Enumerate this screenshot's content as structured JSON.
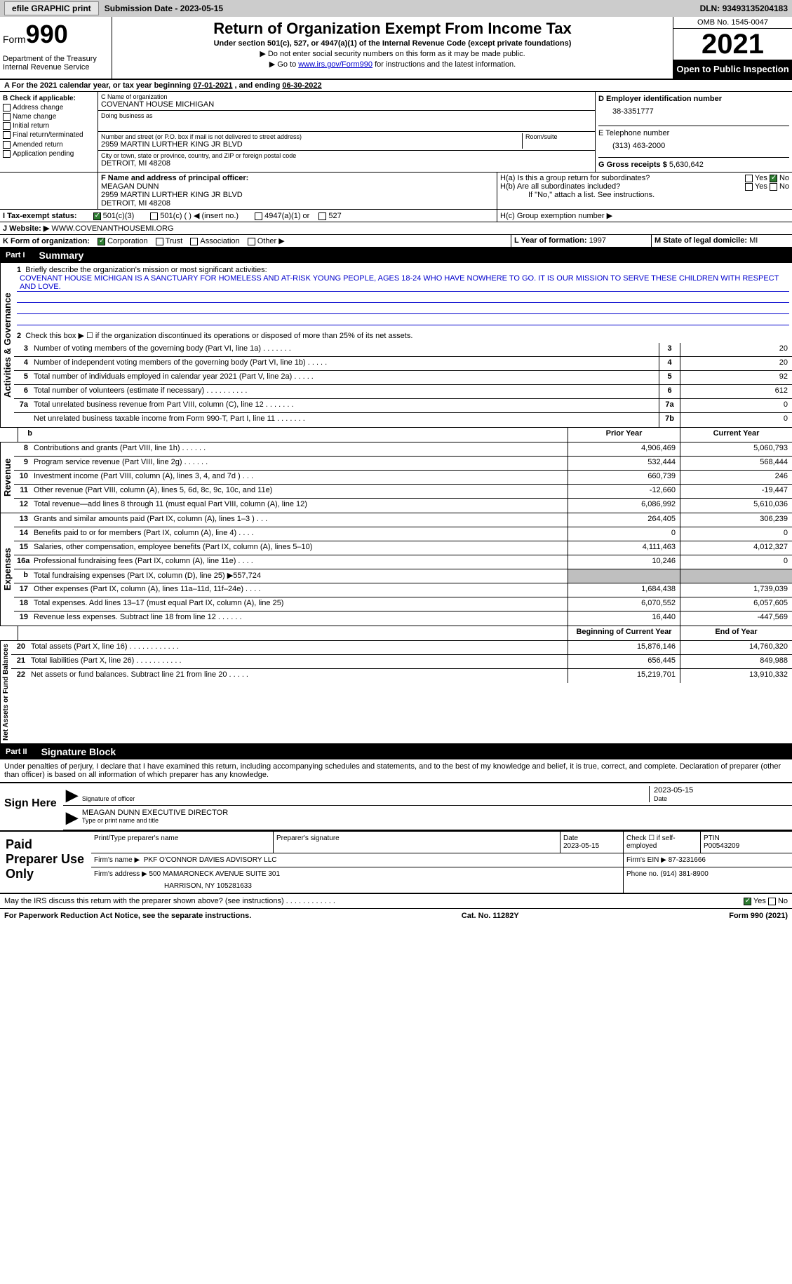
{
  "topbar": {
    "efile": "efile GRAPHIC print",
    "subdate_label": "Submission Date - ",
    "subdate": "2023-05-15",
    "dln_label": "DLN: ",
    "dln": "93493135204183"
  },
  "header": {
    "form_prefix": "Form",
    "form_num": "990",
    "dept": "Department of the Treasury\nInternal Revenue Service",
    "title": "Return of Organization Exempt From Income Tax",
    "sub": "Under section 501(c), 527, or 4947(a)(1) of the Internal Revenue Code (except private foundations)",
    "note1": "▶ Do not enter social security numbers on this form as it may be made public.",
    "note2_pre": "▶ Go to ",
    "note2_link": "www.irs.gov/Form990",
    "note2_post": " for instructions and the latest information.",
    "omb": "OMB No. 1545-0047",
    "year": "2021",
    "inspect": "Open to Public Inspection"
  },
  "sectionA": {
    "text": "A For the 2021 calendar year, or tax year beginning ",
    "begin": "07-01-2021",
    "mid": "   , and ending ",
    "end": "06-30-2022"
  },
  "blockB": {
    "label": "B Check if applicable:",
    "items": [
      "Address change",
      "Name change",
      "Initial return",
      "Final return/terminated",
      "Amended return",
      "Application pending"
    ]
  },
  "blockC": {
    "name_label": "C Name of organization",
    "name": "COVENANT HOUSE MICHIGAN",
    "dba_label": "Doing business as",
    "addr_label": "Number and street (or P.O. box if mail is not delivered to street address)",
    "room_label": "Room/suite",
    "addr": "2959 MARTIN LURTHER KING JR BLVD",
    "city_label": "City or town, state or province, country, and ZIP or foreign postal code",
    "city": "DETROIT, MI  48208"
  },
  "blockD": {
    "label": "D Employer identification number",
    "ein": "38-3351777",
    "tel_label": "E Telephone number",
    "tel": "(313) 463-2000",
    "gross_label": "G Gross receipts $ ",
    "gross": "5,630,642"
  },
  "blockF": {
    "label": "F Name and address of principal officer:",
    "name": "MEAGAN DUNN",
    "addr": "2959 MARTIN LURTHER KING JR BLVD",
    "city": "DETROIT, MI  48208"
  },
  "blockH": {
    "ha": "H(a)  Is this a group return for subordinates?",
    "hb": "H(b)  Are all subordinates included?",
    "hb_note": "If \"No,\" attach a list. See instructions.",
    "hc": "H(c)  Group exemption number ▶"
  },
  "blockI": {
    "label": "I    Tax-exempt status:",
    "opts": [
      "501(c)(3)",
      "501(c) (  ) ◀ (insert no.)",
      "4947(a)(1) or",
      "527"
    ]
  },
  "blockJ": {
    "label": "J    Website: ▶  ",
    "value": "WWW.COVENANTHOUSEMI.ORG"
  },
  "blockK": {
    "label": "K Form of organization:",
    "opts": [
      "Corporation",
      "Trust",
      "Association",
      "Other ▶"
    ]
  },
  "blockL": {
    "label": "L Year of formation: ",
    "value": "1997"
  },
  "blockM": {
    "label": "M State of legal domicile: ",
    "value": "MI"
  },
  "part1": {
    "num": "Part I",
    "title": "Summary"
  },
  "activities": {
    "label": "Activities & Governance",
    "l1_label": "Briefly describe the organization's mission or most significant activities:",
    "l1_text": "COVENANT HOUSE MICHIGAN IS A SANCTUARY FOR HOMELESS AND AT-RISK YOUNG PEOPLE, AGES 18-24 WHO HAVE NOWHERE TO GO. IT IS OUR MISSION TO SERVE THESE CHILDREN WITH RESPECT AND LOVE.",
    "l2": "Check this box ▶ ☐  if the organization discontinued its operations or disposed of more than 25% of its net assets.",
    "lines": [
      {
        "n": "3",
        "d": "Number of voting members of the governing body (Part VI, line 1a)   .    .    .    .    .    .    .",
        "b": "3",
        "v": "20"
      },
      {
        "n": "4",
        "d": "Number of independent voting members of the governing body (Part VI, line 1b)   .    .    .    .    .",
        "b": "4",
        "v": "20"
      },
      {
        "n": "5",
        "d": "Total number of individuals employed in calendar year 2021 (Part V, line 2a)   .    .    .    .    .",
        "b": "5",
        "v": "92"
      },
      {
        "n": "6",
        "d": "Total number of volunteers (estimate if necessary)    .    .    .    .    .    .    .    .    .    .",
        "b": "6",
        "v": "612"
      },
      {
        "n": "7a",
        "d": "Total unrelated business revenue from Part VIII, column (C), line 12   .    .    .    .    .    .    .",
        "b": "7a",
        "v": "0"
      },
      {
        "n": "",
        "d": "Net unrelated business taxable income from Form 990-T, Part I, line 11  .    .    .    .    .    .    .",
        "b": "7b",
        "v": "0"
      }
    ]
  },
  "colheads": {
    "prior": "Prior Year",
    "current": "Current Year",
    "begin": "Beginning of Current Year",
    "end": "End of Year"
  },
  "revenue": {
    "label": "Revenue",
    "lines": [
      {
        "n": "8",
        "d": "Contributions and grants (Part VIII, line 1h)   .    .    .    .    .    .",
        "p": "4,906,469",
        "c": "5,060,793"
      },
      {
        "n": "9",
        "d": "Program service revenue (Part VIII, line 2g)   .    .    .    .    .    .",
        "p": "532,444",
        "c": "568,444"
      },
      {
        "n": "10",
        "d": "Investment income (Part VIII, column (A), lines 3, 4, and 7d )    .    .    .",
        "p": "660,739",
        "c": "246"
      },
      {
        "n": "11",
        "d": "Other revenue (Part VIII, column (A), lines 5, 6d, 8c, 9c, 10c, and 11e)",
        "p": "-12,660",
        "c": "-19,447"
      },
      {
        "n": "12",
        "d": "Total revenue—add lines 8 through 11 (must equal Part VIII, column (A), line 12)",
        "p": "6,086,992",
        "c": "5,610,036"
      }
    ]
  },
  "expenses": {
    "label": "Expenses",
    "lines": [
      {
        "n": "13",
        "d": "Grants and similar amounts paid (Part IX, column (A), lines 1–3 )   .    .    .",
        "p": "264,405",
        "c": "306,239"
      },
      {
        "n": "14",
        "d": "Benefits paid to or for members (Part IX, column (A), line 4)   .    .    .    .",
        "p": "0",
        "c": "0"
      },
      {
        "n": "15",
        "d": "Salaries, other compensation, employee benefits (Part IX, column (A), lines 5–10)",
        "p": "4,111,463",
        "c": "4,012,327"
      },
      {
        "n": "16a",
        "d": "Professional fundraising fees (Part IX, column (A), line 11e)   .    .    .    .",
        "p": "10,246",
        "c": "0"
      },
      {
        "n": "b",
        "d": "Total fundraising expenses (Part IX, column (D), line 25) ▶557,724",
        "p": "shade",
        "c": "shade"
      },
      {
        "n": "17",
        "d": "Other expenses (Part IX, column (A), lines 11a–11d, 11f–24e)   .    .    .    .",
        "p": "1,684,438",
        "c": "1,739,039"
      },
      {
        "n": "18",
        "d": "Total expenses. Add lines 13–17 (must equal Part IX, column (A), line 25)",
        "p": "6,070,552",
        "c": "6,057,605"
      },
      {
        "n": "19",
        "d": "Revenue less expenses. Subtract line 18 from line 12  .    .    .    .    .    .",
        "p": "16,440",
        "c": "-447,569"
      }
    ]
  },
  "netassets": {
    "label": "Net Assets or Fund Balances",
    "lines": [
      {
        "n": "20",
        "d": "Total assets (Part X, line 16)  .    .    .    .    .    .    .    .    .    .    .    .",
        "p": "15,876,146",
        "c": "14,760,320"
      },
      {
        "n": "21",
        "d": "Total liabilities (Part X, line 26)  .    .    .    .    .    .    .    .    .    .    .",
        "p": "656,445",
        "c": "849,988"
      },
      {
        "n": "22",
        "d": "Net assets or fund balances. Subtract line 21 from line 20   .    .    .    .    .",
        "p": "15,219,701",
        "c": "13,910,332"
      }
    ]
  },
  "part2": {
    "num": "Part II",
    "title": "Signature Block",
    "perjury": "Under penalties of perjury, I declare that I have examined this return, including accompanying schedules and statements, and to the best of my knowledge and belief, it is true, correct, and complete. Declaration of preparer (other than officer) is based on all information of which preparer has any knowledge."
  },
  "sign": {
    "label": "Sign Here",
    "sig_label": "Signature of officer",
    "date": "2023-05-15",
    "date_label": "Date",
    "name": "MEAGAN DUNN  EXECUTIVE DIRECTOR",
    "name_label": "Type or print name and title"
  },
  "prep": {
    "label": "Paid Preparer Use Only",
    "r1": {
      "c1_label": "Print/Type preparer's name",
      "c2_label": "Preparer's signature",
      "c3_label": "Date",
      "c3": "2023-05-15",
      "c4": "Check ☐ if self-employed",
      "c5_label": "PTIN",
      "c5": "P00543209"
    },
    "r2": {
      "label": "Firm's name      ▶",
      "value": "PKF O'CONNOR DAVIES ADVISORY LLC",
      "ein_label": "Firm's EIN ▶",
      "ein": "87-3231666"
    },
    "r3": {
      "label": "Firm's address ▶",
      "l1": "500 MAMARONECK AVENUE SUITE 301",
      "l2": "HARRISON, NY  105281633",
      "ph_label": "Phone no.",
      "ph": "(914) 381-8900"
    }
  },
  "footer": {
    "discuss": "May the IRS discuss this return with the preparer shown above? (see instructions)   .    .    .    .    .    .    .    .    .    .    .    .",
    "yes": "Yes",
    "no": "No",
    "paperwork": "For Paperwork Reduction Act Notice, see the separate instructions.",
    "cat": "Cat. No. 11282Y",
    "form": "Form 990 (2021)"
  }
}
